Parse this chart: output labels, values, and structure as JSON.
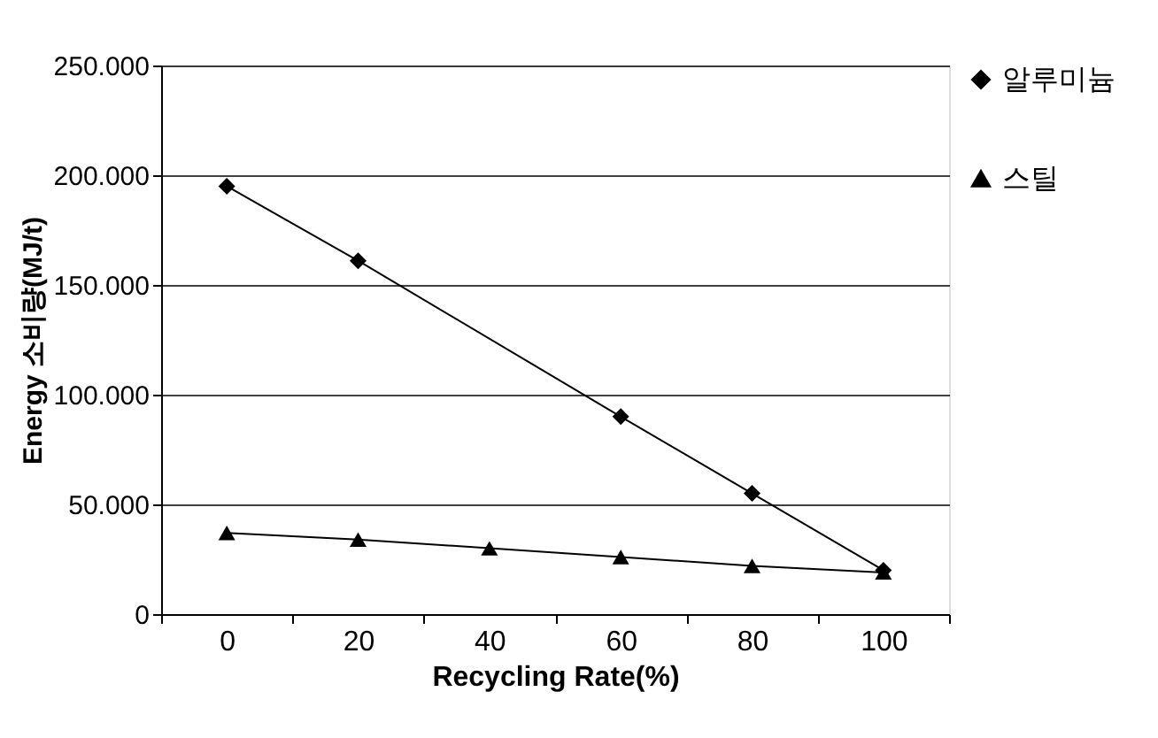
{
  "chart_data": {
    "type": "line",
    "xlabel": "Recycling Rate(%)",
    "ylabel": "Energy 소비량(MJ/t)",
    "categories": [
      "0",
      "20",
      "40",
      "60",
      "80",
      "100"
    ],
    "series": [
      {
        "name": "알루미늄",
        "color": "#000000",
        "marker": "diamond",
        "values": [
          195000,
          161000,
          null,
          90000,
          55000,
          20000
        ]
      },
      {
        "name": "스틸",
        "color": "#000000",
        "marker": "triangle",
        "values": [
          37000,
          34000,
          30000,
          26000,
          22000,
          19000
        ]
      }
    ],
    "ylim": [
      0,
      250000
    ],
    "yticks": [
      0,
      {
        "value": 50000,
        "label": "50.000"
      },
      {
        "value": 100000,
        "label": "100.000"
      },
      {
        "value": 150000,
        "label": "150.000"
      },
      {
        "value": 200000,
        "label": "200.000"
      },
      {
        "value": 250000,
        "label": "250.000"
      }
    ],
    "grid": "y",
    "legend": "right",
    "line_style": "solid"
  }
}
